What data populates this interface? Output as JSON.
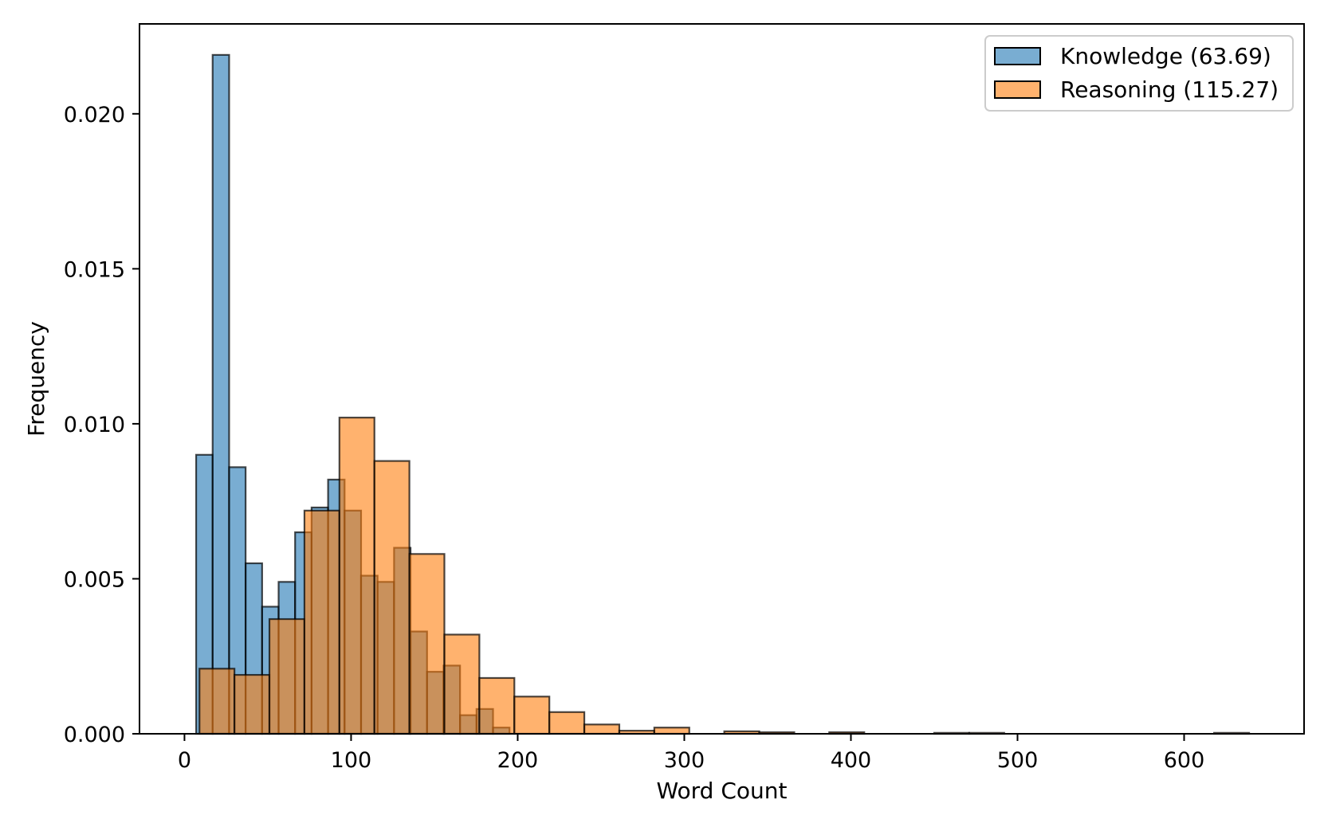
{
  "chart_data": {
    "type": "bar",
    "title": "",
    "xlabel": "Word Count",
    "ylabel": "Frequency",
    "xlim": [
      -27,
      672
    ],
    "ylim": [
      0,
      0.0229
    ],
    "xticks": [
      0,
      100,
      200,
      300,
      400,
      500,
      600
    ],
    "yticks": [
      "0.000",
      "0.005",
      "0.010",
      "0.015",
      "0.020"
    ],
    "legend_position": "top-right",
    "grid": false,
    "series": [
      {
        "name": "Knowledge (63.69)",
        "color": "#1f77b4",
        "opacity": 0.6,
        "bin_start": 7,
        "bin_width": 9.9,
        "values": [
          0.009,
          0.0219,
          0.0086,
          0.0055,
          0.0041,
          0.0049,
          0.0065,
          0.0073,
          0.0082,
          0.0072,
          0.0051,
          0.0049,
          0.006,
          0.0033,
          0.002,
          0.0022,
          0.0006,
          0.0008,
          0.0002
        ]
      },
      {
        "name": "Reasoning (115.27)",
        "color": "#ff7f0e",
        "opacity": 0.6,
        "bin_start": 9,
        "bin_width": 21,
        "values": [
          0.0021,
          0.0019,
          0.0037,
          0.0072,
          0.0102,
          0.0088,
          0.0058,
          0.0032,
          0.0018,
          0.0012,
          0.0007,
          0.0003,
          0.0001,
          0.0002,
          0.0,
          8e-05,
          5e-05,
          0.0,
          5e-05,
          0.0,
          0.0,
          3e-05,
          3e-05,
          0.0,
          0.0,
          0.0,
          0.0,
          0.0,
          0.0,
          3e-05
        ]
      }
    ]
  }
}
